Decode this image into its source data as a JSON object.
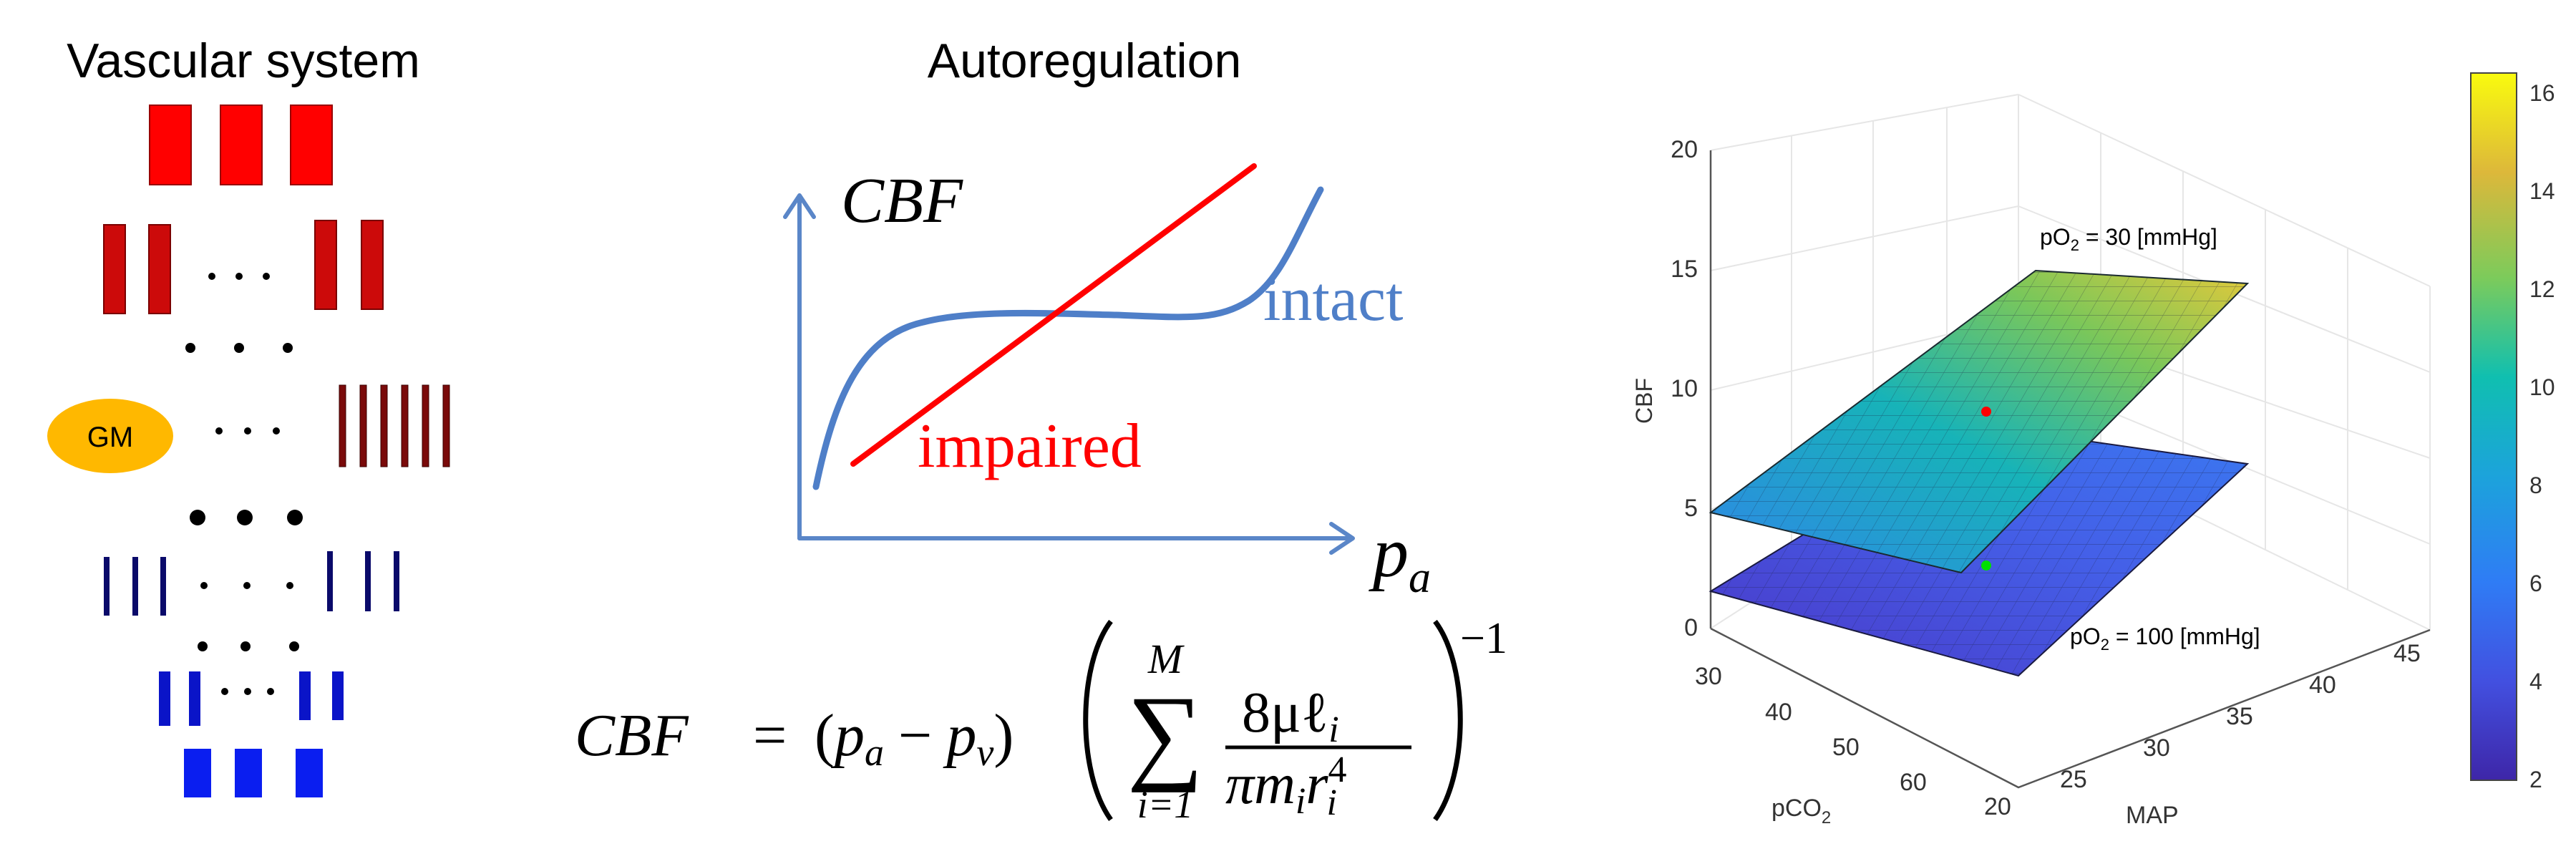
{
  "colors": {
    "red_bright": "#ff0000",
    "red_mid": "#cc0a0a",
    "red_dark": "#7a0a0a",
    "blue_dark": "#0a0a6a",
    "blue_mid": "#0a14c8",
    "blue_bright": "#0a1ef0",
    "gm_fill": "#ffb800",
    "curve_blue": "#4f7fc8",
    "curve_red": "#ff0000",
    "surface_upper": "#46b47a",
    "surface_lower": "#4a3ed0",
    "marker_red": "#ff0000",
    "marker_green": "#00ff00"
  },
  "vascular": {
    "title": "Vascular system",
    "gm_label": "GM"
  },
  "autoregulation": {
    "title": "Autoregulation",
    "y_axis": "CBF",
    "x_axis_main": "p",
    "x_axis_sub": "a",
    "intact_label": "intact",
    "impaired_label": "impaired"
  },
  "formula": {
    "lhs": "CBF",
    "equals": "=",
    "diff_open": "(",
    "pa": "p",
    "pa_sub": "a",
    "minus": "−",
    "pv": "p",
    "pv_sub": "v",
    "diff_close": ")",
    "sum_symbol": "∑",
    "sum_upper": "M",
    "sum_lower": "i=1",
    "numerator": "8μℓ",
    "numerator_sub": "i",
    "denominator": "πm",
    "denominator_sub1": "i",
    "denominator_r": "r",
    "denominator_sup": "4",
    "denominator_sub2": "i",
    "exponent": "−1"
  },
  "plot3d": {
    "z_label": "CBF",
    "z_ticks": [
      "0",
      "5",
      "10",
      "15",
      "20"
    ],
    "x_label": "MAP",
    "x_ticks": [
      "20",
      "25",
      "30",
      "35",
      "40",
      "45"
    ],
    "y_label_main": "pCO",
    "y_label_sub": "2",
    "y_ticks": [
      "30",
      "40",
      "50",
      "60"
    ],
    "upper_surface_label": "pO",
    "upper_surface_sub": "2",
    "upper_surface_rest": " = 30 [mmHg]",
    "lower_surface_label": "pO",
    "lower_surface_sub": "2",
    "lower_surface_rest": " = 100 [mmHg]",
    "colorbar_ticks": [
      "2",
      "4",
      "6",
      "8",
      "10",
      "12",
      "14",
      "16"
    ]
  }
}
